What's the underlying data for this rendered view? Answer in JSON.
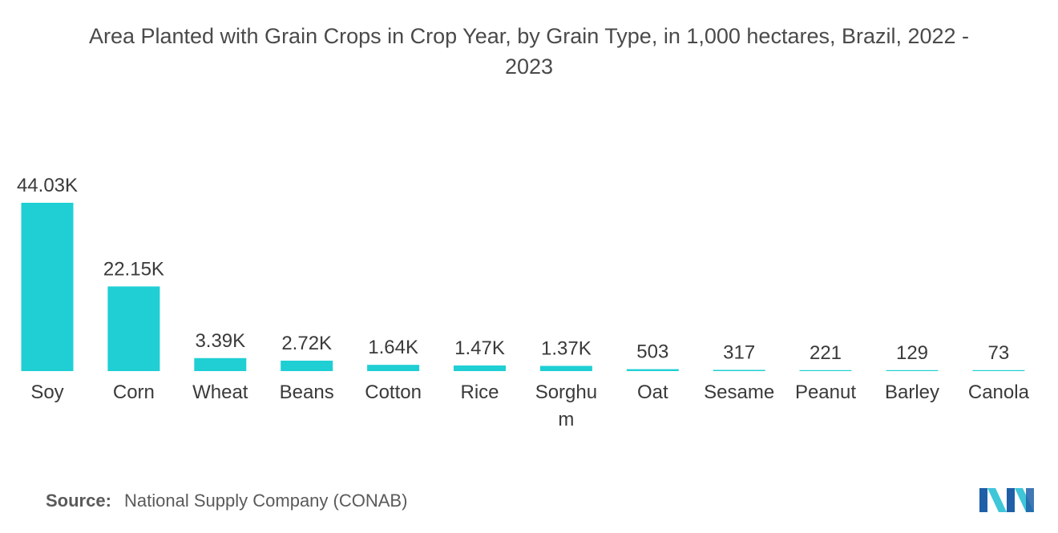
{
  "chart_data": {
    "type": "bar",
    "title": "Area Planted with Grain Crops in Crop Year, by Grain Type, in 1,000 hectares, Brazil, 2022 - 2023",
    "title_lines": [
      "Area Planted with Grain Crops in Crop Year, by Grain Type, in 1,000 hectares, Brazil, 2022 -",
      "2023"
    ],
    "xlabel": "",
    "ylabel": "",
    "categories": [
      "Soy",
      "Corn",
      "Wheat",
      "Beans",
      "Cotton",
      "Rice",
      "Sorghum",
      "Oat",
      "Sesame",
      "Peanut",
      "Barley",
      "Canola"
    ],
    "category_label_lines": [
      [
        "Soy"
      ],
      [
        "Corn"
      ],
      [
        "Wheat"
      ],
      [
        "Beans"
      ],
      [
        "Cotton"
      ],
      [
        "Rice"
      ],
      [
        "Sorghu",
        "m"
      ],
      [
        "Oat"
      ],
      [
        "Sesame"
      ],
      [
        "Peanut"
      ],
      [
        "Barley"
      ],
      [
        "Canola"
      ]
    ],
    "values": [
      44030,
      22150,
      3390,
      2720,
      1640,
      1470,
      1370,
      503,
      317,
      221,
      129,
      73
    ],
    "data_labels": [
      "44.03K",
      "22.15K",
      "3.39K",
      "2.72K",
      "1.64K",
      "1.47K",
      "1.37K",
      "503",
      "317",
      "221",
      "129",
      "73"
    ],
    "ylim": [
      0,
      44030
    ],
    "grid": false,
    "legend": "none",
    "bar_color": "#1fcfd4"
  },
  "source": {
    "label": "Source:",
    "text": "National Supply Company (CONAB)"
  },
  "logo": {
    "icon": "mordor-intelligence-logo-icon",
    "colors": [
      "#1e5fa8",
      "#3fc6d9"
    ]
  }
}
